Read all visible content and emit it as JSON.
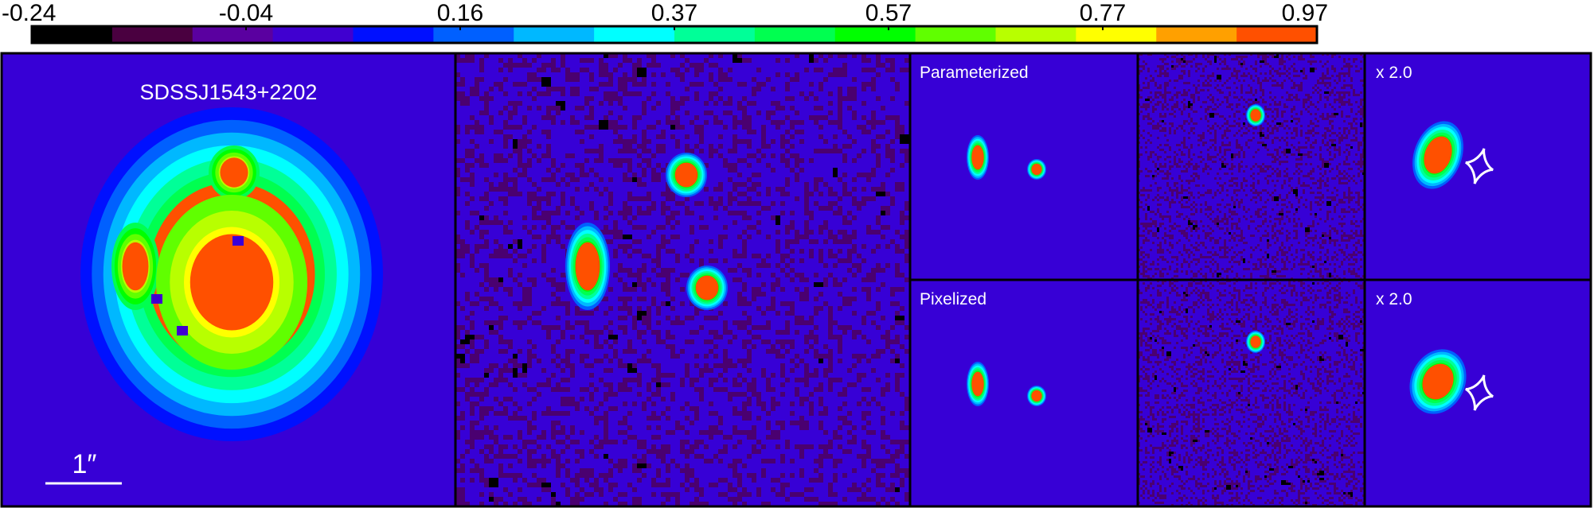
{
  "colorbar": {
    "tick_labels": [
      "-0.24",
      "-0.04",
      "0.16",
      "0.37",
      "0.57",
      "0.77",
      "0.97"
    ],
    "colors": [
      "#000000",
      "#4a0040",
      "#5a00a0",
      "#4000d0",
      "#0010ff",
      "#0060ff",
      "#00b8ff",
      "#00ffff",
      "#00ff98",
      "#00ff50",
      "#00ff00",
      "#60ff00",
      "#b8ff00",
      "#ffff00",
      "#ffa000",
      "#ff5000"
    ]
  },
  "background_color": "#3700d6",
  "panels": {
    "data": {
      "label": "SDSSJ1543+2202",
      "scale_bar_label": "1″"
    },
    "residual_main": {},
    "model_top": {
      "label": "Parameterized"
    },
    "model_bottom": {
      "label": "Pixelized"
    },
    "source_top": {
      "label": "x 2.0"
    },
    "source_bottom": {
      "label": "x 2.0"
    }
  }
}
